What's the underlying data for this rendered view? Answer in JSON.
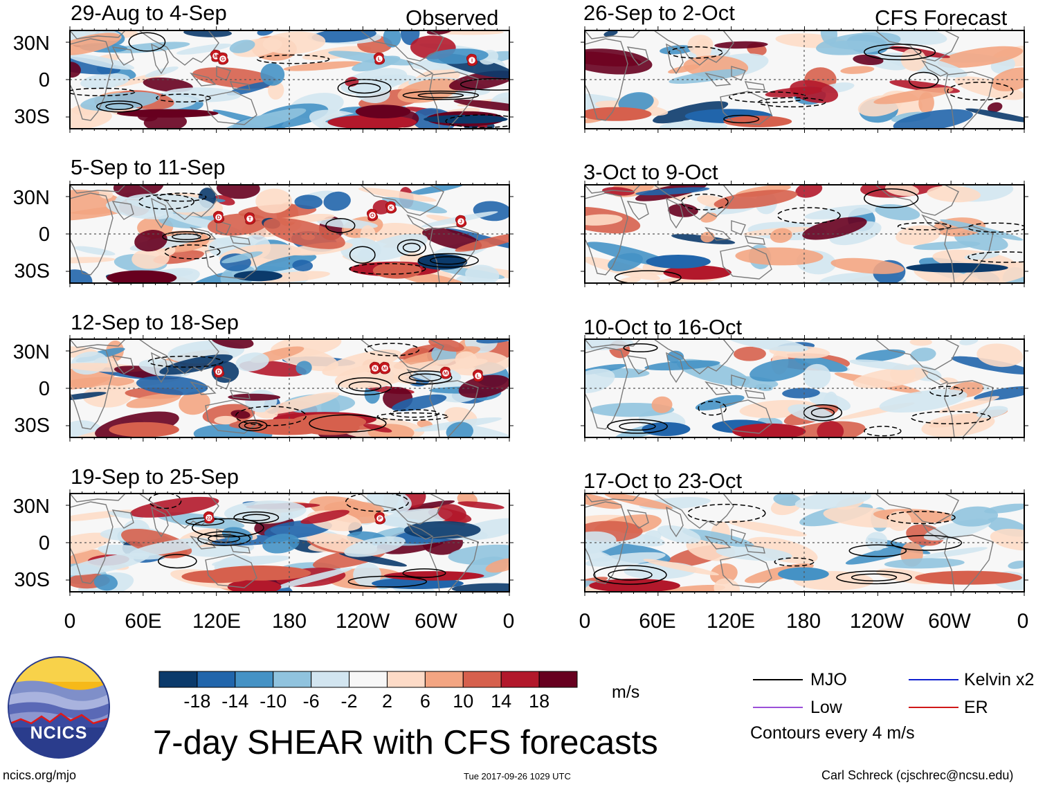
{
  "figure": {
    "main_title": "7-day SHEAR with CFS forecasts",
    "observed_label": "Observed",
    "forecast_label": "CFS Forecast",
    "units": "m/s",
    "contour_note": "Contours every 4 m/s",
    "url": "ncics.org/mjo",
    "timestamp": "Tue 2017-09-26 1029 UTC",
    "credit": "Carl Schreck (cjschrec@ncsu.edu)",
    "logo_text": "NCICS"
  },
  "panels": {
    "observed": [
      {
        "title": "29-Aug to 4-Sep"
      },
      {
        "title": "5-Sep to 11-Sep"
      },
      {
        "title": "12-Sep to 18-Sep"
      },
      {
        "title": "19-Sep to 25-Sep"
      }
    ],
    "forecast": [
      {
        "title": "26-Sep to 2-Oct"
      },
      {
        "title": "3-Oct to 9-Oct"
      },
      {
        "title": "10-Oct to 16-Oct"
      },
      {
        "title": "17-Oct to 23-Oct"
      }
    ]
  },
  "axes": {
    "lat_labels": [
      "30N",
      "0",
      "30S"
    ],
    "lon_labels": [
      "0",
      "60E",
      "120E",
      "180",
      "120W",
      "60W",
      "0"
    ]
  },
  "colorbar": {
    "labels": [
      "-18",
      "-14",
      "-10",
      "-6",
      "-2",
      "2",
      "6",
      "10",
      "14",
      "18"
    ],
    "colors": [
      "#0b3a6b",
      "#2165ab",
      "#4592c5",
      "#90c3de",
      "#d2e5f0",
      "#f7f7f7",
      "#fddbc7",
      "#f3a582",
      "#d6604d",
      "#b2182b",
      "#67001f"
    ]
  },
  "legend": [
    {
      "label": "MJO",
      "color": "#000000",
      "style": "solid"
    },
    {
      "label": "Kelvin x2",
      "color": "#1020d0",
      "style": "solid"
    },
    {
      "label": "Low",
      "color": "#9b4fd8",
      "style": "solid"
    },
    {
      "label": "ER",
      "color": "#d01818",
      "style": "solid"
    }
  ],
  "storm_markers": {
    "panel1": [
      "M",
      "G",
      "L",
      "I"
    ],
    "panel2": [
      "D",
      "T",
      "O",
      "K",
      "J"
    ],
    "panel3": [
      "D",
      "N",
      "M",
      "M",
      "L"
    ],
    "panel4": [
      "22",
      "P"
    ]
  }
}
